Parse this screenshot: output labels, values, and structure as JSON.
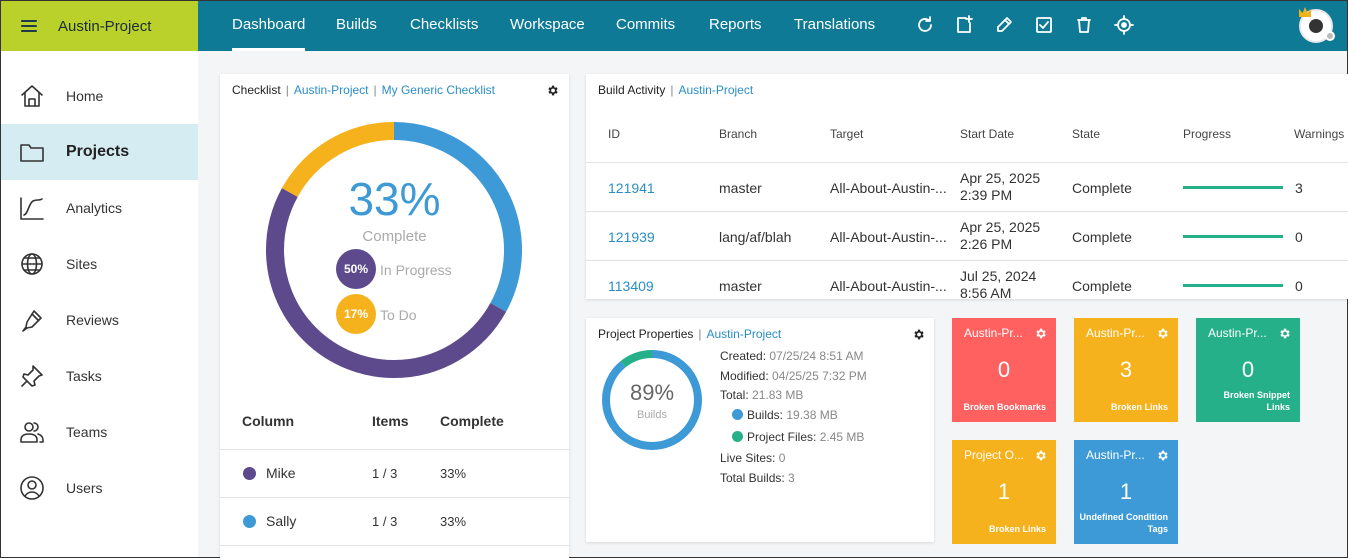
{
  "app": {
    "project_name": "Austin-Project"
  },
  "nav": {
    "items": [
      "Dashboard",
      "Builds",
      "Checklists",
      "Workspace",
      "Commits",
      "Reports",
      "Translations"
    ],
    "active": "Dashboard",
    "tool_icons": [
      "refresh-icon",
      "new-file-icon",
      "edit-icon",
      "checklist-icon",
      "trash-icon",
      "target-icon"
    ]
  },
  "sidebar": {
    "items": [
      {
        "label": "Home",
        "icon": "home-icon"
      },
      {
        "label": "Projects",
        "icon": "folder-icon",
        "active": true
      },
      {
        "label": "Analytics",
        "icon": "analytics-icon"
      },
      {
        "label": "Sites",
        "icon": "globe-icon"
      },
      {
        "label": "Reviews",
        "icon": "pen-icon"
      },
      {
        "label": "Tasks",
        "icon": "pin-icon"
      },
      {
        "label": "Teams",
        "icon": "team-icon"
      },
      {
        "label": "Users",
        "icon": "user-icon"
      }
    ]
  },
  "checklist": {
    "title": "Checklist",
    "project": "Austin-Project",
    "checklist_name": "My Generic Checklist",
    "complete_pct": "33%",
    "complete_label": "Complete",
    "segments": [
      {
        "name": "Complete",
        "fraction": 0.33,
        "color": "#3d9ad7"
      },
      {
        "name": "In Progress",
        "fraction": 0.5,
        "color": "#5c4a8c"
      },
      {
        "name": "To Do",
        "fraction": 0.17,
        "color": "#f6b21d"
      }
    ],
    "in_progress": {
      "pct": "50%",
      "label": "In Progress",
      "color": "#5c4a8c"
    },
    "to_do": {
      "pct": "17%",
      "label": "To Do",
      "color": "#f6b21d"
    },
    "table": {
      "headers": [
        "Column",
        "Items",
        "Complete"
      ],
      "rows": [
        {
          "name": "Mike",
          "items": "1 / 3",
          "complete": "33%",
          "color": "#5c4a8c"
        },
        {
          "name": "Sally",
          "items": "1 / 3",
          "complete": "33%",
          "color": "#3d9ad7"
        }
      ]
    }
  },
  "build_activity": {
    "title": "Build Activity",
    "project": "Austin-Project",
    "headers": [
      "ID",
      "Branch",
      "Target",
      "Start Date",
      "State",
      "Progress",
      "Warnings"
    ],
    "rows": [
      {
        "id": "121941",
        "branch": "master",
        "target": "All-About-Austin-...",
        "date1": "Apr 25, 2025",
        "date2": "2:39 PM",
        "state": "Complete",
        "progress": 1.0,
        "warnings": "3"
      },
      {
        "id": "121939",
        "branch": "lang/af/blah",
        "target": "All-About-Austin-...",
        "date1": "Apr 25, 2025",
        "date2": "2:26 PM",
        "state": "Complete",
        "progress": 1.0,
        "warnings": "0"
      },
      {
        "id": "113409",
        "branch": "master",
        "target": "All-About-Austin-...",
        "date1": "Jul 25, 2024",
        "date2": "8:56 AM",
        "state": "Complete",
        "progress": 1.0,
        "warnings": "0"
      }
    ]
  },
  "project_properties": {
    "title": "Project Properties",
    "project": "Austin-Project",
    "pct": "89%",
    "pct_label": "Builds",
    "builds_fraction": 0.89,
    "colors": {
      "builds": "#3d9ad7",
      "project_files": "#26b08a"
    },
    "created_label": "Created:",
    "created": "07/25/24 8:51 AM",
    "modified_label": "Modified:",
    "modified": "04/25/25 7:32 PM",
    "total_label": "Total:",
    "total": "21.83 MB",
    "builds_label": "Builds:",
    "builds": "19.38 MB",
    "files_label": "Project Files:",
    "files": "2.45 MB",
    "live_sites_label": "Live Sites:",
    "live_sites": "0",
    "total_builds_label": "Total Builds:",
    "total_builds": "3"
  },
  "tiles": [
    {
      "title": "Austin-Pr...",
      "value": "0",
      "caption": "Broken Bookmarks",
      "color": "#ff6060"
    },
    {
      "title": "Austin-Pr...",
      "value": "3",
      "caption": "Broken Links",
      "color": "#f6b21d"
    },
    {
      "title": "Austin-Pr...",
      "value": "0",
      "caption": "Broken Snippet Links",
      "color": "#26b08a"
    },
    {
      "title": "Project O...",
      "value": "1",
      "caption": "Broken Links",
      "color": "#f6b21d"
    },
    {
      "title": "Austin-Pr...",
      "value": "1",
      "caption": "Undefined Condition Tags",
      "color": "#3d9ad7"
    }
  ]
}
